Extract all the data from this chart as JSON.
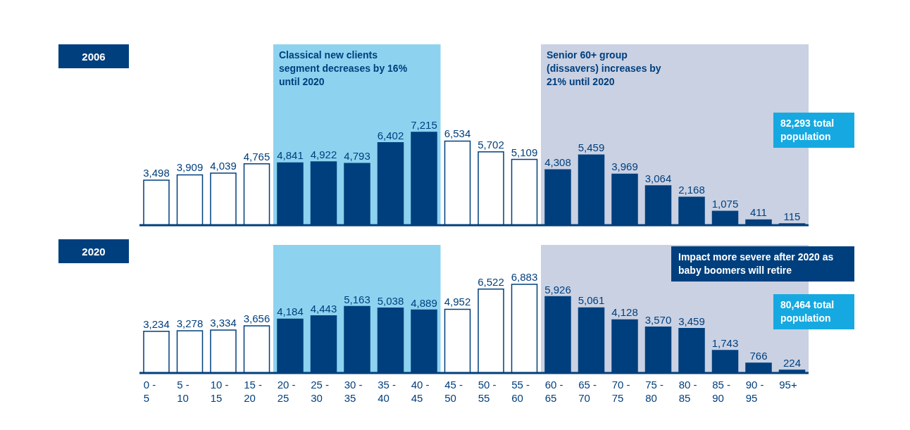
{
  "chart_data": [
    {
      "type": "bar",
      "title": "2006",
      "categories": [
        "0 - 5",
        "5 - 10",
        "10 - 15",
        "15 - 20",
        "20 - 25",
        "25 - 30",
        "30 - 35",
        "35 - 40",
        "40 - 45",
        "45 - 50",
        "50 - 55",
        "55 - 60",
        "60 - 65",
        "65 - 70",
        "70 - 75",
        "75 - 80",
        "80 - 85",
        "85 - 90",
        "90 - 95",
        "95+"
      ],
      "values": [
        3498,
        3909,
        4039,
        4765,
        4841,
        4922,
        4793,
        6402,
        7215,
        6534,
        5702,
        5109,
        4308,
        5459,
        3969,
        3064,
        2168,
        1075,
        411,
        115
      ],
      "colors": [
        "#ffffff",
        "#ffffff",
        "#ffffff",
        "#ffffff",
        "#003f7d",
        "#003f7d",
        "#003f7d",
        "#003f7d",
        "#003f7d",
        "#ffffff",
        "#ffffff",
        "#ffffff",
        "#003f7d",
        "#003f7d",
        "#003f7d",
        "#003f7d",
        "#003f7d",
        "#003f7d",
        "#003f7d",
        "#003f7d"
      ],
      "value_labels": [
        "3,498",
        "3,909",
        "4,039",
        "4,765",
        "4,841",
        "4,922",
        "4,793",
        "6,402",
        "7,215",
        "6,534",
        "5,702",
        "5,109",
        "4,308",
        "5,459",
        "3,969",
        "3,064",
        "2,168",
        "1,075",
        "411",
        "115"
      ],
      "tick_labels": false,
      "bands": [
        {
          "axis": "x",
          "from": "20 - 25",
          "to": "40 - 45",
          "label": "Classical new clients segment decreases by 16% until 2020",
          "color": "#8dd3f0"
        },
        {
          "axis": "x",
          "from": "60 - 65",
          "to": "95+",
          "label": "Senior 60+ group (dissavers) increases by 21% until 2020",
          "color": "#c9d1e3"
        }
      ],
      "annotations": [
        "82,293 total population"
      ]
    },
    {
      "type": "bar",
      "title": "2020",
      "categories": [
        "0 - 5",
        "5 - 10",
        "10 - 15",
        "15 - 20",
        "20 - 25",
        "25 - 30",
        "30 - 35",
        "35 - 40",
        "40 - 45",
        "45 - 50",
        "50 - 55",
        "55 - 60",
        "60 - 65",
        "65 - 70",
        "70 - 75",
        "75 - 80",
        "80 - 85",
        "85 - 90",
        "90 - 95",
        "95+"
      ],
      "values": [
        3234,
        3278,
        3334,
        3656,
        4184,
        4443,
        5163,
        5038,
        4889,
        4952,
        6522,
        6883,
        5926,
        5061,
        4128,
        3570,
        3459,
        1743,
        766,
        224
      ],
      "colors": [
        "#ffffff",
        "#ffffff",
        "#ffffff",
        "#ffffff",
        "#003f7d",
        "#003f7d",
        "#003f7d",
        "#003f7d",
        "#003f7d",
        "#ffffff",
        "#ffffff",
        "#ffffff",
        "#003f7d",
        "#003f7d",
        "#003f7d",
        "#003f7d",
        "#003f7d",
        "#003f7d",
        "#003f7d",
        "#003f7d"
      ],
      "value_labels": [
        "3,234",
        "3,278",
        "3,334",
        "3,656",
        "4,184",
        "4,443",
        "5,163",
        "5,038",
        "4,889",
        "4,952",
        "6,522",
        "6,883",
        "5,926",
        "5,061",
        "4,128",
        "3,570",
        "3,459",
        "1,743",
        "766",
        "224"
      ],
      "tick_labels": "x",
      "bands": [
        {
          "axis": "x",
          "from": "20 - 25",
          "to": "40 - 45",
          "color": "#8dd3f0"
        },
        {
          "axis": "x",
          "from": "60 - 65",
          "to": "95+",
          "color": "#c9d1e3"
        }
      ],
      "annotations": [
        "Impact more severe after 2020 as baby boomers will retire",
        "80,464 total population"
      ]
    }
  ]
}
